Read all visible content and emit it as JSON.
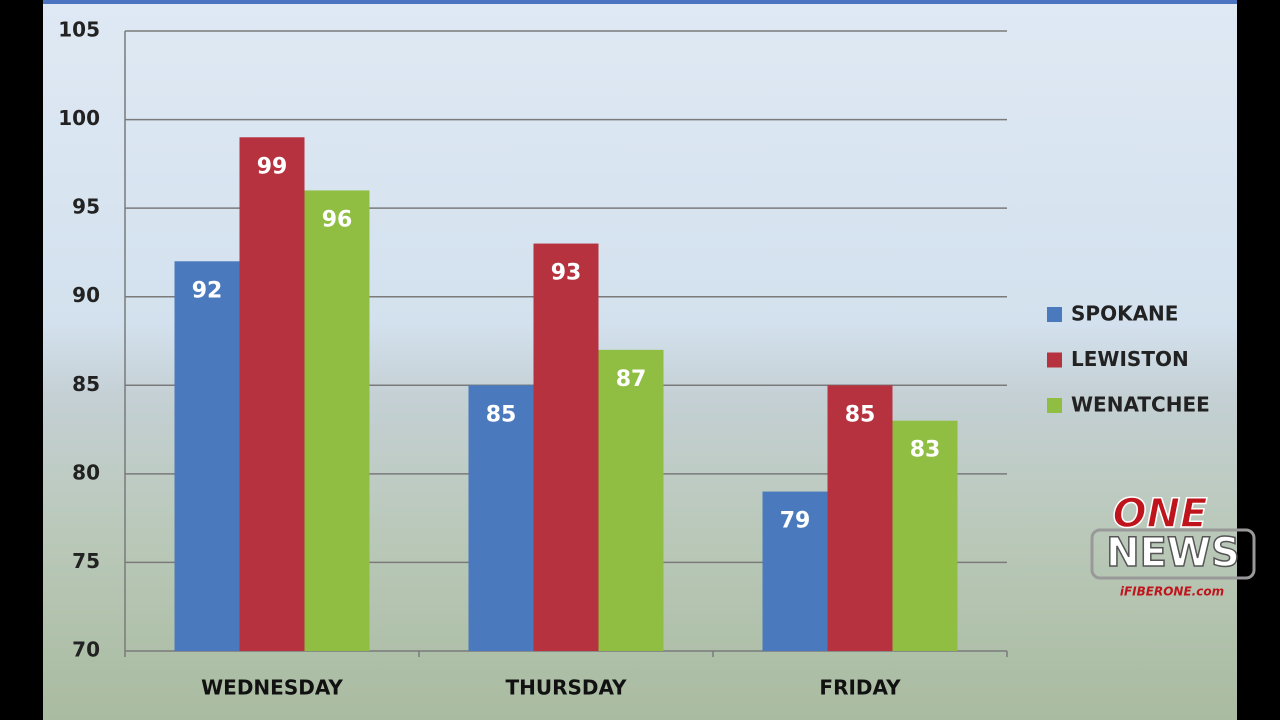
{
  "chart_data": {
    "type": "bar",
    "categories": [
      "WEDNESDAY",
      "THURSDAY",
      "FRIDAY"
    ],
    "series": [
      {
        "name": "SPOKANE",
        "color": "#4a7abd",
        "values": [
          92,
          85,
          79
        ]
      },
      {
        "name": "LEWISTON",
        "color": "#b5323e",
        "values": [
          99,
          93,
          85
        ]
      },
      {
        "name": "WENATCHEE",
        "color": "#8fbe42",
        "values": [
          96,
          87,
          83
        ]
      }
    ],
    "ylim": [
      70,
      105
    ],
    "yticks": [
      70,
      75,
      80,
      85,
      90,
      95,
      100,
      105
    ],
    "grid": true,
    "legend": "right"
  },
  "logo": {
    "top": "ONE",
    "middle": "NEWS",
    "bottom": "iFIBERONE.com"
  }
}
